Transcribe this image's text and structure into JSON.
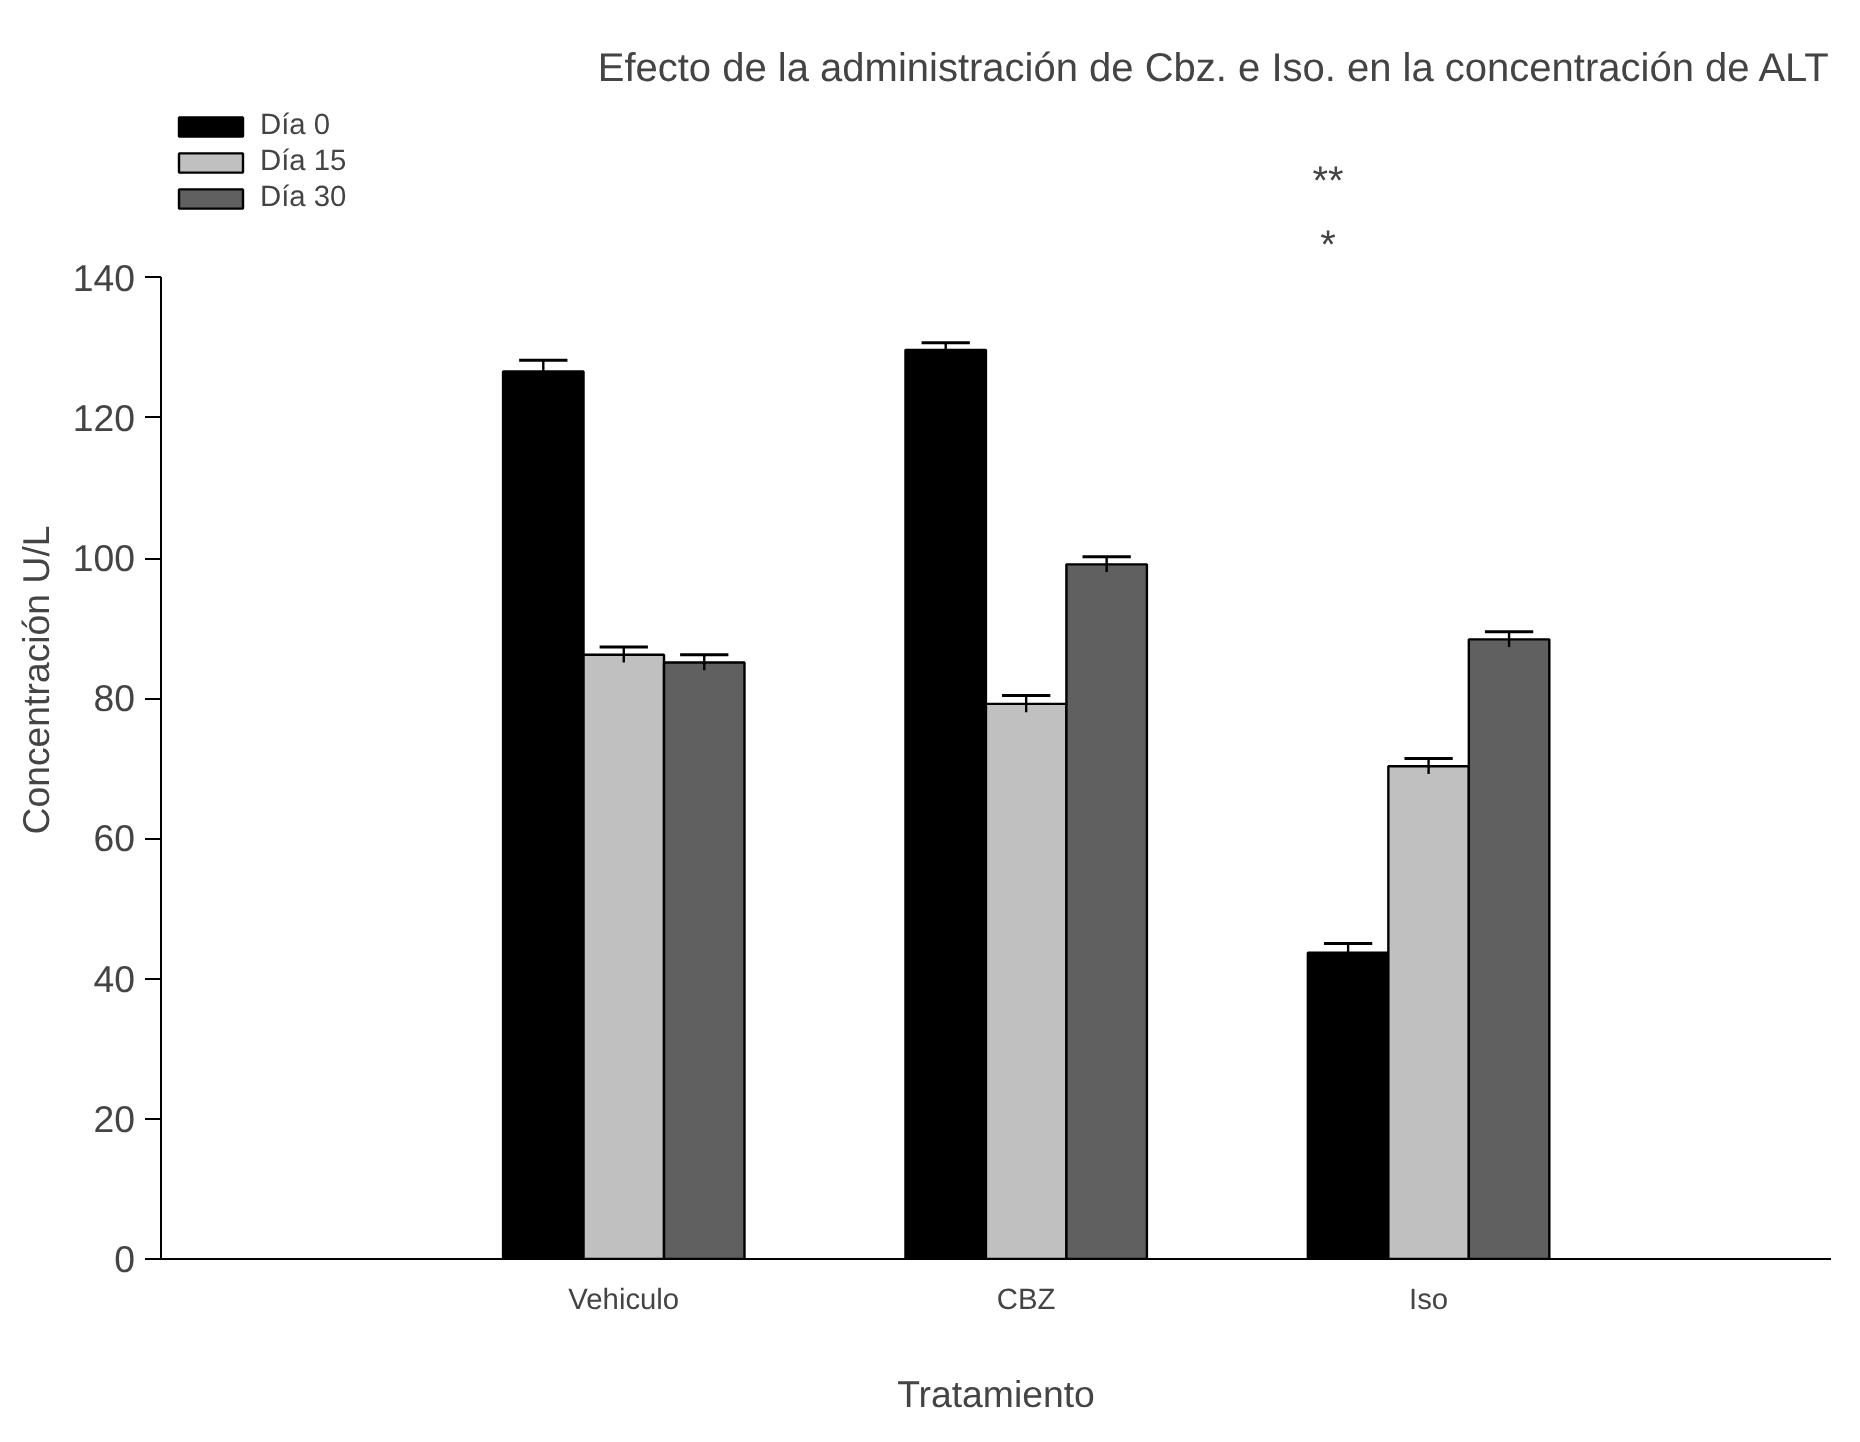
{
  "chart_data": {
    "type": "bar",
    "title": "Efecto de la administración de Cbz. e Iso. en la concentración de ALT",
    "xlabel": "Tratamiento",
    "ylabel": "Concentración U/L",
    "categories": [
      "Vehiculo",
      "CBZ",
      "Iso"
    ],
    "series": [
      {
        "name": "Día 0",
        "color": "#000000",
        "values": [
          126.6,
          129.7,
          43.7
        ],
        "errors": [
          1.6,
          1.0,
          1.3
        ]
      },
      {
        "name": "Día 15",
        "color": "#c0c0c0",
        "values": [
          86.2,
          79.2,
          70.3
        ],
        "errors": [
          1.1,
          1.2,
          1.1
        ]
      },
      {
        "name": "Día 30",
        "color": "#606060",
        "values": [
          85.1,
          99.1,
          88.4
        ],
        "errors": [
          1.1,
          1.1,
          1.1
        ]
      }
    ],
    "ylim": [
      0,
      140
    ],
    "yticks": [
      0,
      20,
      40,
      60,
      80,
      100,
      120,
      140
    ],
    "grid": false,
    "legend": "top left",
    "annotations": [
      "**",
      "*"
    ]
  }
}
